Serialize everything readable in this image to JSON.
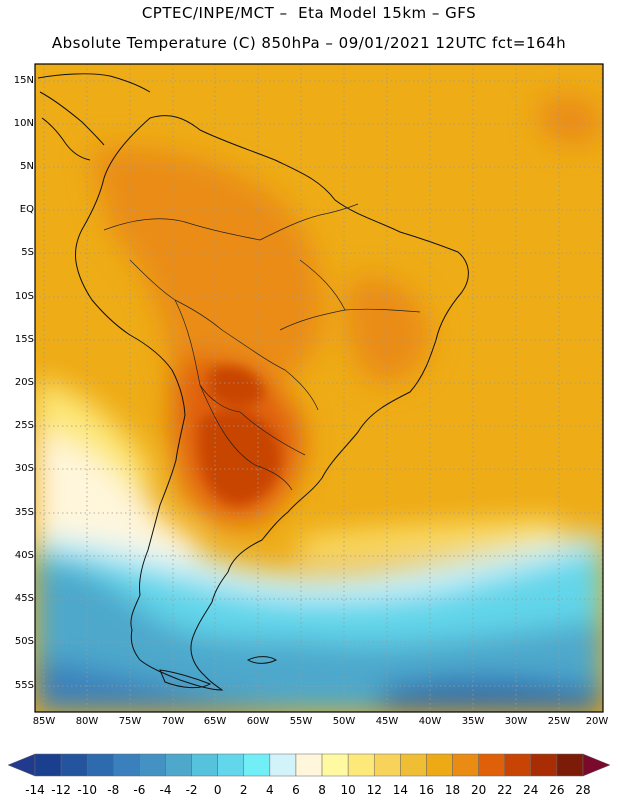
{
  "header": {
    "title_line1": "CPTEC/INPE/MCT –  Eta Model 15km – GFS",
    "title_line2": "Absolute Temperature (C) 850hPa – 09/01/2021 12UTC fct=164h"
  },
  "map": {
    "region": "South America",
    "variable": "Absolute Temperature",
    "units": "C",
    "level": "850hPa",
    "lat_labels": [
      "15N",
      "10N",
      "5N",
      "EQ",
      "5S",
      "10S",
      "15S",
      "20S",
      "25S",
      "30S",
      "35S",
      "40S",
      "45S",
      "50S",
      "55S"
    ],
    "lon_labels": [
      "85W",
      "80W",
      "75W",
      "70W",
      "65W",
      "60W",
      "55W",
      "50W",
      "45W",
      "40W",
      "35W",
      "30W",
      "25W",
      "20W"
    ]
  },
  "colorbar": {
    "labels": [
      "-14",
      "-12",
      "-10",
      "-8",
      "-6",
      "-4",
      "-2",
      "0",
      "2",
      "4",
      "6",
      "8",
      "10",
      "12",
      "14",
      "16",
      "18",
      "20",
      "22",
      "24",
      "26",
      "28"
    ],
    "colors": [
      "#1b3f8f",
      "#24549e",
      "#2e6aae",
      "#3a80bc",
      "#4492c4",
      "#4ea8cc",
      "#57c2dc",
      "#62d6ea",
      "#72eef6",
      "#d3f3fb",
      "#fff6dc",
      "#fffaa2",
      "#fde87a",
      "#f7d35c",
      "#f0be34",
      "#eeaa14",
      "#ea8c14",
      "#e0600a",
      "#c84404",
      "#a82d04",
      "#7c1b08"
    ],
    "over_color": "#7a0a2c",
    "under_color": "#223a8e"
  }
}
